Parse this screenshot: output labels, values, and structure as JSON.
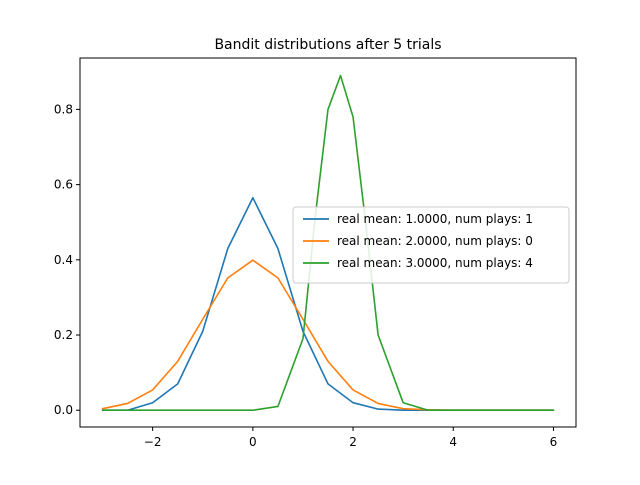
{
  "chart_data": {
    "type": "line",
    "title": "Bandit distributions after 5 trials",
    "xlabel": "",
    "ylabel": "",
    "xlim": [
      -3.45,
      6.45
    ],
    "ylim": [
      -0.0446,
      0.9367
    ],
    "xticks": [
      {
        "value": -2,
        "label": "−2"
      },
      {
        "value": 0,
        "label": "0"
      },
      {
        "value": 2,
        "label": "2"
      },
      {
        "value": 4,
        "label": "4"
      },
      {
        "value": 6,
        "label": "6"
      }
    ],
    "yticks": [
      {
        "value": 0.0,
        "label": "0.0"
      },
      {
        "value": 0.2,
        "label": "0.2"
      },
      {
        "value": 0.4,
        "label": "0.4"
      },
      {
        "value": 0.6,
        "label": "0.6"
      },
      {
        "value": 0.8,
        "label": "0.8"
      }
    ],
    "grid": false,
    "legend_position": "center-right",
    "x_range": [
      -3,
      6
    ],
    "series": [
      {
        "name": "real mean: 1.0000, num plays: 1",
        "color": "#1f77b4",
        "x": [
          -3.0,
          -2.5,
          -2.0,
          -1.5,
          -1.0,
          -0.5,
          0.0,
          0.5,
          1.0,
          1.5,
          2.0,
          2.5,
          3.0,
          4.0,
          5.0,
          6.0
        ],
        "y": [
          0.0,
          0.0,
          0.02,
          0.07,
          0.21,
          0.43,
          0.565,
          0.43,
          0.21,
          0.07,
          0.02,
          0.003,
          0.0,
          0.0,
          0.0,
          0.0
        ]
      },
      {
        "name": "real mean: 2.0000, num plays: 0",
        "color": "#ff7f0e",
        "x": [
          -3.0,
          -2.5,
          -2.0,
          -1.5,
          -1.0,
          -0.5,
          0.0,
          0.5,
          1.0,
          1.5,
          2.0,
          2.5,
          3.0,
          3.5,
          4.0,
          5.0,
          6.0
        ],
        "y": [
          0.004,
          0.018,
          0.054,
          0.13,
          0.242,
          0.352,
          0.399,
          0.352,
          0.242,
          0.13,
          0.054,
          0.018,
          0.004,
          0.001,
          0.0,
          0.0,
          0.0
        ],
        "draw_from_x": -3
      },
      {
        "name": "real mean: 3.0000, num plays: 4",
        "color": "#2ca02c",
        "x": [
          -3.0,
          0.0,
          0.5,
          1.0,
          1.25,
          1.5,
          1.75,
          2.0,
          2.25,
          2.5,
          3.0,
          3.5,
          6.0
        ],
        "y": [
          0.0,
          0.0,
          0.01,
          0.19,
          0.52,
          0.8,
          0.89,
          0.78,
          0.5,
          0.2,
          0.02,
          0.0,
          0.0
        ]
      }
    ]
  }
}
